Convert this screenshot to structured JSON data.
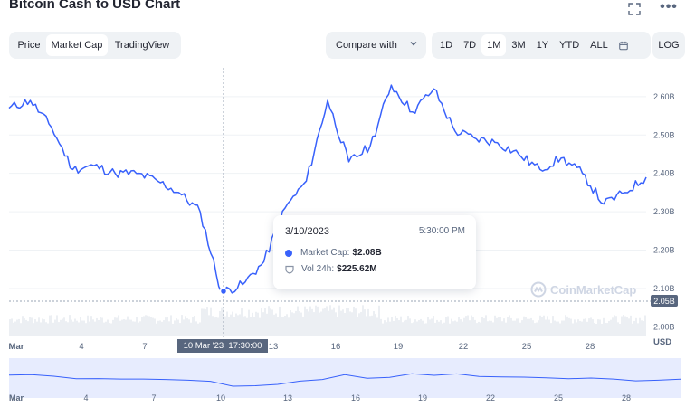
{
  "header": {
    "title": "Bitcoin Cash to USD Chart"
  },
  "icons": {
    "fullscreen": "fullscreen-icon",
    "more": "more-icon",
    "more_glyph": "•••",
    "calendar": "calendar-icon"
  },
  "view_tabs": [
    {
      "label": "Price",
      "active": false
    },
    {
      "label": "Market Cap",
      "active": true
    },
    {
      "label": "TradingView",
      "active": false
    }
  ],
  "compare": {
    "label": "Compare with"
  },
  "ranges": [
    {
      "label": "1D",
      "active": false
    },
    {
      "label": "7D",
      "active": false
    },
    {
      "label": "1M",
      "active": true
    },
    {
      "label": "3M",
      "active": false
    },
    {
      "label": "1Y",
      "active": false
    },
    {
      "label": "YTD",
      "active": false
    },
    {
      "label": "ALL",
      "active": false
    }
  ],
  "log_label": "LOG",
  "tooltip": {
    "date": "3/10/2023",
    "time": "5:30:00 PM",
    "market_cap_label": "Market Cap:",
    "market_cap_value": "$2.08B",
    "vol_label": "Vol 24h:",
    "vol_value": "$225.62M"
  },
  "watermark": "CoinMarketCap",
  "crosshair": {
    "price_tag": "2.05B",
    "date_tag": "10 Mar '23  17:30:00"
  },
  "colors": {
    "line": "#3861fb",
    "navigator_fill": "#e7ecfe",
    "volume": "#eceff3",
    "tag_bg": "#58667e"
  },
  "chart_data": {
    "type": "line",
    "series": [
      {
        "name": "Market Cap",
        "unit": "USD"
      }
    ],
    "x": [
      "Feb 28",
      "Mar 1",
      "Mar 2",
      "Mar 3",
      "Mar 4",
      "Mar 5",
      "Mar 6",
      "Mar 7",
      "Mar 8",
      "Mar 9",
      "Mar 10",
      "Mar 11",
      "Mar 12",
      "Mar 13",
      "Mar 14",
      "Mar 15",
      "Mar 16",
      "Mar 17",
      "Mar 18",
      "Mar 19",
      "Mar 20",
      "Mar 21",
      "Mar 22",
      "Mar 23",
      "Mar 24",
      "Mar 25",
      "Mar 26",
      "Mar 27",
      "Mar 28",
      "Mar 29",
      "Mar 30"
    ],
    "values": [
      2.57,
      2.59,
      2.52,
      2.41,
      2.42,
      2.4,
      2.4,
      2.38,
      2.35,
      2.3,
      2.09,
      2.11,
      2.17,
      2.31,
      2.38,
      2.59,
      2.43,
      2.47,
      2.63,
      2.56,
      2.62,
      2.51,
      2.49,
      2.48,
      2.45,
      2.41,
      2.44,
      2.4,
      2.32,
      2.35,
      2.39
    ],
    "y_tick_labels": [
      "2.60B",
      "2.50B",
      "2.40B",
      "2.30B",
      "2.20B",
      "2.10B",
      "2.00B"
    ],
    "y_unit_label": "USD",
    "x_tick_labels": [
      "Mar",
      "4",
      "7",
      "10",
      "13",
      "16",
      "19",
      "22",
      "25",
      "28"
    ],
    "navigator_tick_labels": [
      "Mar",
      "4",
      "7",
      "10",
      "13",
      "16",
      "19",
      "22",
      "25",
      "28"
    ],
    "ylim": [
      1.975,
      2.675
    ],
    "grid": "horizontal",
    "volume": "shown as light bars at bottom of plot"
  }
}
